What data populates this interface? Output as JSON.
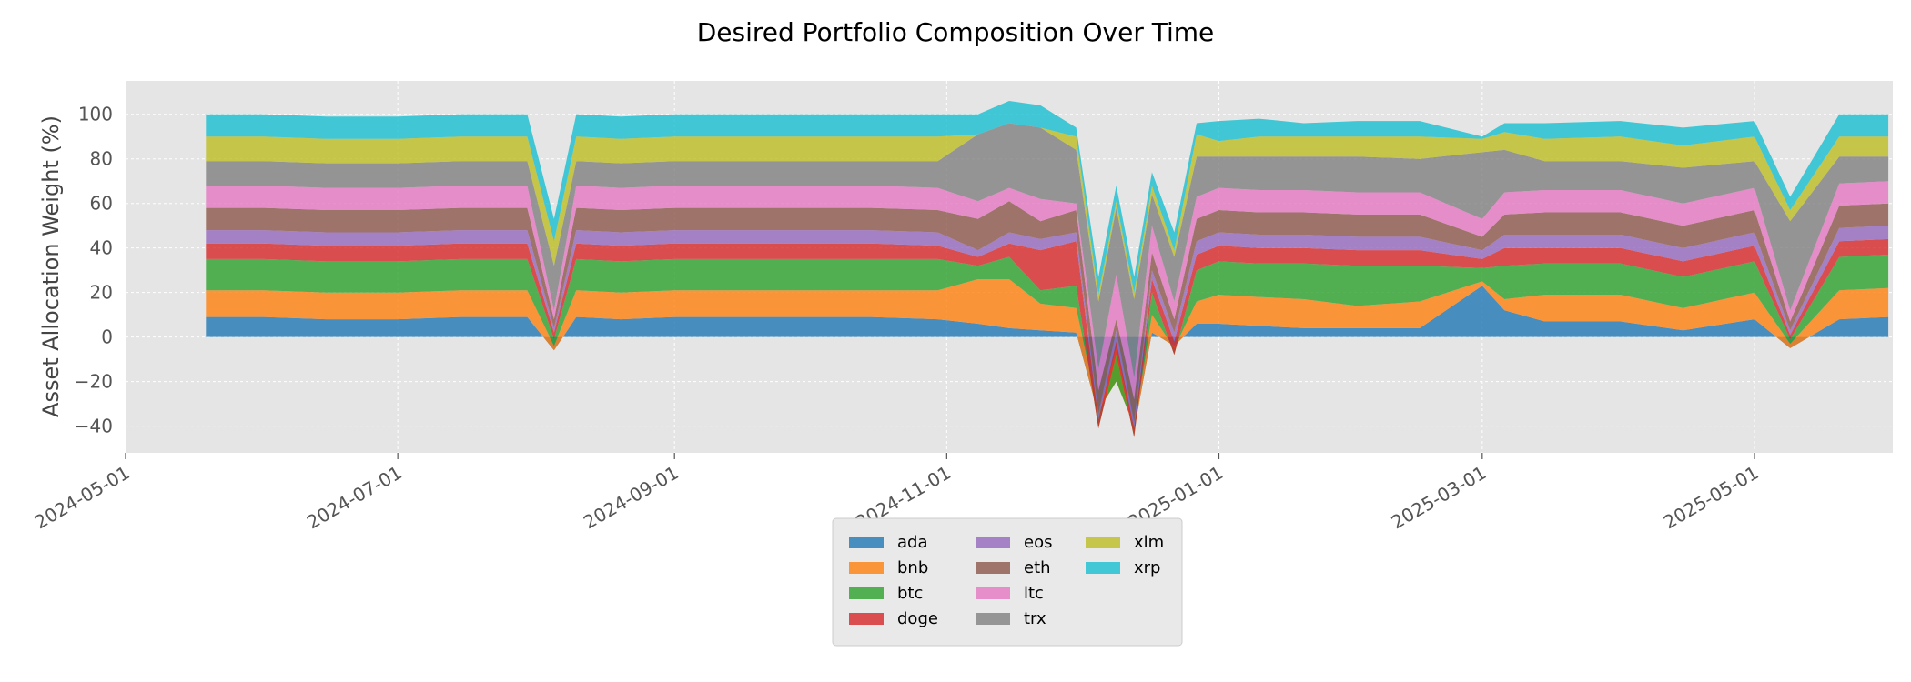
{
  "chart_data": {
    "type": "area",
    "stacked": true,
    "title": "Desired Portfolio Composition Over Time",
    "xlabel": "",
    "ylabel": "Asset Allocation Weight (%)",
    "xlim": [
      "2024-05-01",
      "2025-06-01"
    ],
    "ylim": [
      -52,
      115
    ],
    "x_ticks": [
      "2024-05-01",
      "2024-07-01",
      "2024-09-01",
      "2024-11-01",
      "2025-01-01",
      "2025-03-01",
      "2025-05-01"
    ],
    "y_ticks": [
      100,
      80,
      60,
      40,
      20,
      0,
      -20,
      -40
    ],
    "grid": true,
    "legend": {
      "placement": "bottom-center",
      "columns": 3
    },
    "x": [
      "2024-05-19",
      "2024-06-01",
      "2024-06-15",
      "2024-07-01",
      "2024-07-15",
      "2024-07-30",
      "2024-08-05",
      "2024-08-10",
      "2024-08-20",
      "2024-09-01",
      "2024-09-15",
      "2024-10-01",
      "2024-10-15",
      "2024-10-30",
      "2024-11-08",
      "2024-11-15",
      "2024-11-22",
      "2024-11-30",
      "2024-12-05",
      "2024-12-09",
      "2024-12-13",
      "2024-12-17",
      "2024-12-22",
      "2024-12-27",
      "2025-01-01",
      "2025-01-10",
      "2025-01-20",
      "2025-02-01",
      "2025-02-15",
      "2025-03-01",
      "2025-03-06",
      "2025-03-15",
      "2025-04-01",
      "2025-04-15",
      "2025-05-01",
      "2025-05-09",
      "2025-05-20",
      "2025-05-31"
    ],
    "series": [
      {
        "name": "ada",
        "color": "#1f77b4",
        "values": [
          9,
          9,
          8,
          8,
          9,
          9,
          -6,
          9,
          8,
          9,
          9,
          9,
          9,
          8,
          6,
          4,
          3,
          2,
          -35,
          -5,
          -42,
          2,
          -4,
          6,
          6,
          5,
          4,
          4,
          4,
          23,
          12,
          7,
          7,
          3,
          8,
          -5,
          8,
          9
        ]
      },
      {
        "name": "bnb",
        "color": "#ff7f0e",
        "values": [
          12,
          12,
          12,
          12,
          12,
          12,
          2,
          12,
          12,
          12,
          12,
          12,
          12,
          13,
          20,
          22,
          12,
          11,
          2,
          -15,
          2,
          8,
          -1,
          10,
          13,
          13,
          13,
          10,
          12,
          2,
          5,
          12,
          12,
          10,
          12,
          2,
          13,
          13
        ]
      },
      {
        "name": "btc",
        "color": "#2ca02c",
        "values": [
          14,
          14,
          14,
          14,
          14,
          14,
          3,
          14,
          14,
          14,
          14,
          14,
          14,
          14,
          6,
          10,
          6,
          10,
          -8,
          12,
          -5,
          10,
          -3,
          14,
          15,
          15,
          16,
          18,
          16,
          6,
          15,
          14,
          14,
          14,
          14,
          2,
          15,
          15
        ]
      },
      {
        "name": "doge",
        "color": "#d62728",
        "values": [
          7,
          7,
          7,
          7,
          7,
          7,
          3,
          7,
          7,
          7,
          7,
          7,
          7,
          6,
          4,
          6,
          18,
          20,
          4,
          6,
          4,
          6,
          6,
          7,
          7,
          7,
          7,
          7,
          7,
          4,
          8,
          7,
          7,
          7,
          7,
          2,
          7,
          7
        ]
      },
      {
        "name": "eos",
        "color": "#9467bd",
        "values": [
          6,
          6,
          6,
          6,
          6,
          6,
          2,
          6,
          6,
          6,
          6,
          6,
          6,
          6,
          3,
          5,
          5,
          4,
          3,
          5,
          3,
          4,
          4,
          6,
          6,
          6,
          6,
          6,
          6,
          4,
          6,
          6,
          6,
          6,
          6,
          2,
          6,
          6
        ]
      },
      {
        "name": "eth",
        "color": "#8c564b",
        "values": [
          10,
          10,
          10,
          10,
          10,
          10,
          4,
          10,
          10,
          10,
          10,
          10,
          10,
          10,
          14,
          14,
          8,
          10,
          10,
          5,
          10,
          8,
          6,
          10,
          10,
          10,
          10,
          10,
          10,
          6,
          9,
          10,
          10,
          10,
          10,
          4,
          10,
          10
        ]
      },
      {
        "name": "ltc",
        "color": "#e377c2",
        "values": [
          10,
          10,
          10,
          10,
          10,
          10,
          4,
          10,
          10,
          10,
          10,
          10,
          10,
          10,
          8,
          6,
          10,
          3,
          10,
          20,
          10,
          12,
          8,
          10,
          10,
          10,
          10,
          10,
          10,
          8,
          10,
          10,
          10,
          10,
          10,
          5,
          10,
          10
        ]
      },
      {
        "name": "trx",
        "color": "#7f7f7f",
        "values": [
          11,
          11,
          11,
          11,
          11,
          11,
          20,
          11,
          11,
          11,
          11,
          11,
          11,
          12,
          30,
          29,
          32,
          24,
          30,
          30,
          35,
          14,
          20,
          18,
          14,
          15,
          15,
          16,
          15,
          30,
          19,
          13,
          13,
          16,
          12,
          40,
          12,
          11
        ]
      },
      {
        "name": "xlm",
        "color": "#bcbd22",
        "values": [
          11,
          11,
          11,
          11,
          11,
          11,
          11,
          11,
          11,
          11,
          11,
          11,
          11,
          11,
          0,
          0,
          0,
          6,
          3,
          3,
          3,
          4,
          3,
          10,
          7,
          9,
          9,
          9,
          10,
          6,
          8,
          10,
          11,
          10,
          11,
          5,
          9,
          9
        ]
      },
      {
        "name": "xrp",
        "color": "#17becf",
        "values": [
          10,
          10,
          10,
          10,
          10,
          10,
          10,
          10,
          10,
          10,
          10,
          10,
          10,
          10,
          9,
          10,
          10,
          4,
          8,
          7,
          7,
          6,
          8,
          5,
          9,
          8,
          6,
          7,
          7,
          1,
          4,
          7,
          7,
          8,
          7,
          6,
          10,
          10
        ]
      }
    ]
  }
}
